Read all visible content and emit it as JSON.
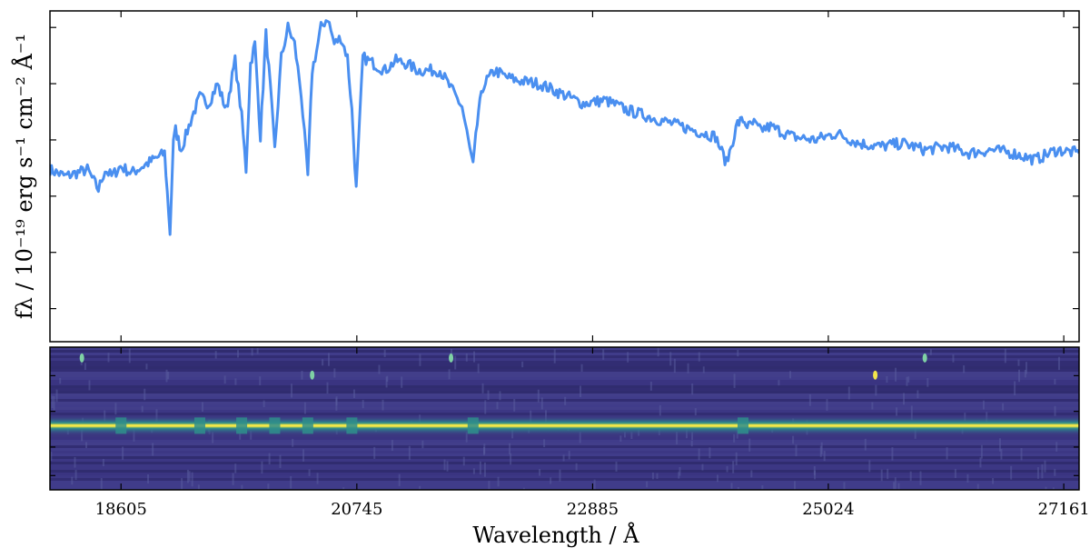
{
  "chart_data": {
    "type": "line",
    "title": "",
    "xlabel": "Wavelength / Å",
    "ylabel": "fλ / 10⁻¹⁹ erg s⁻¹ cm⁻² Å⁻¹",
    "xlim": [
      17960,
      27300
    ],
    "ylim": [
      0,
      1
    ],
    "grid": false,
    "x_ticks": [
      18605,
      20745,
      22885,
      25024,
      27161
    ],
    "x_tick_labels": [
      "18605",
      "20745",
      "22885",
      "25024",
      "27161"
    ],
    "y_ticks": [
      0.1,
      0.27,
      0.44,
      0.61,
      0.78,
      0.95
    ],
    "y_tick_labels_visible": false,
    "series": [
      {
        "color": "#4a8ff0",
        "x": [
          17960,
          18100,
          18300,
          18400,
          18460,
          18520,
          18600,
          18700,
          18850,
          19000,
          19050,
          19080,
          19100,
          19150,
          19250,
          19320,
          19400,
          19480,
          19560,
          19640,
          19700,
          19740,
          19780,
          19820,
          19870,
          19920,
          19960,
          20000,
          20060,
          20120,
          20180,
          20240,
          20300,
          20340,
          20380,
          20420,
          20480,
          20540,
          20600,
          20660,
          20700,
          20740,
          20800,
          20900,
          21000,
          21100,
          21200,
          21300,
          21500,
          21700,
          21800,
          21850,
          21900,
          21950,
          22000,
          22100,
          22200,
          22400,
          22600,
          22800,
          23000,
          23200,
          23400,
          23600,
          23800,
          24000,
          24100,
          24200,
          24250,
          24300,
          24350,
          24400,
          24500,
          24700,
          24900,
          25100,
          25300,
          25500,
          25700,
          25900,
          26100,
          26300,
          26500,
          26700,
          26900,
          27100,
          27300
        ],
        "y": [
          0.52,
          0.5,
          0.52,
          0.46,
          0.52,
          0.5,
          0.53,
          0.51,
          0.54,
          0.57,
          0.33,
          0.6,
          0.64,
          0.58,
          0.68,
          0.74,
          0.72,
          0.78,
          0.7,
          0.85,
          0.68,
          0.52,
          0.84,
          0.9,
          0.62,
          0.93,
          0.77,
          0.58,
          0.86,
          0.95,
          0.9,
          0.75,
          0.5,
          0.82,
          0.88,
          0.95,
          0.98,
          0.9,
          0.92,
          0.86,
          0.7,
          0.46,
          0.86,
          0.84,
          0.82,
          0.85,
          0.84,
          0.82,
          0.82,
          0.71,
          0.53,
          0.7,
          0.78,
          0.8,
          0.82,
          0.8,
          0.79,
          0.78,
          0.75,
          0.72,
          0.73,
          0.7,
          0.68,
          0.66,
          0.64,
          0.62,
          0.54,
          0.66,
          0.67,
          0.65,
          0.66,
          0.64,
          0.65,
          0.62,
          0.61,
          0.63,
          0.6,
          0.59,
          0.6,
          0.58,
          0.59,
          0.57,
          0.58,
          0.57,
          0.55,
          0.58,
          0.57
        ]
      }
    ],
    "spectrum_image": {
      "colormap": "viridis",
      "trace_level": 0.55,
      "absorption_x": [
        18605,
        19320,
        19700,
        20000,
        20300,
        20700,
        21800,
        24250
      ],
      "bright_spots_x": [
        18250,
        20340,
        21600,
        25450,
        25900
      ]
    }
  }
}
